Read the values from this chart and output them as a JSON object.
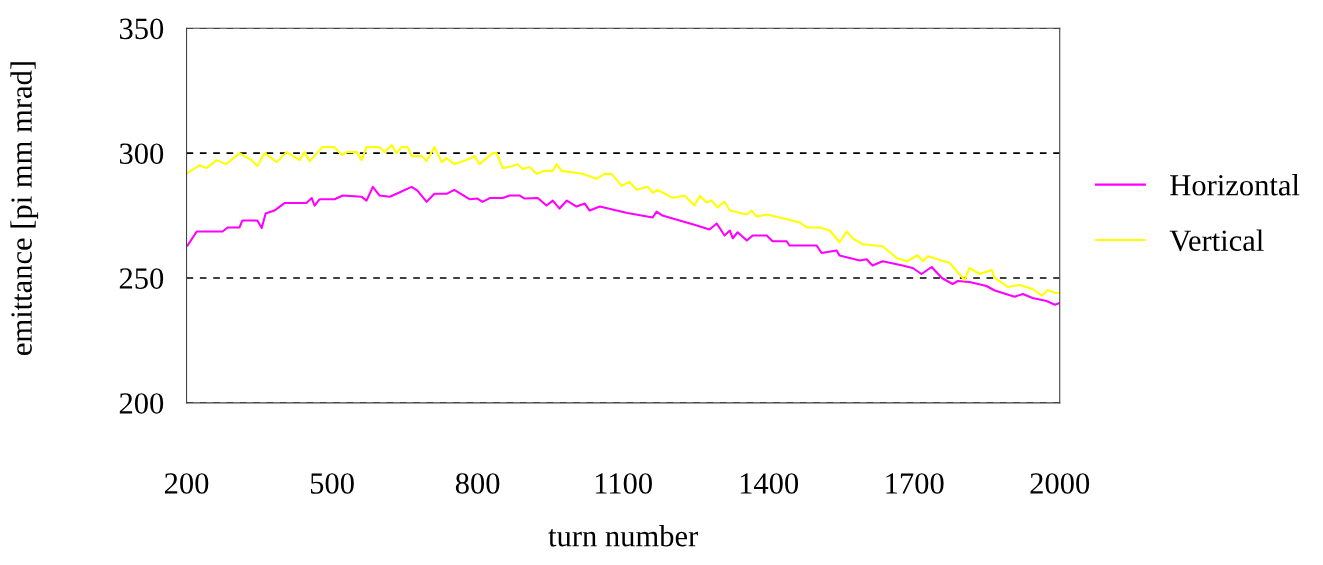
{
  "chart_data": {
    "type": "line",
    "xlabel": "turn number",
    "ylabel": "emittance [pi mm mrad]",
    "xlim": [
      200,
      2000
    ],
    "xticks": [
      200,
      500,
      800,
      1100,
      1400,
      1700,
      2000
    ],
    "ylim": [
      200,
      350
    ],
    "yticks": [
      200,
      250,
      300,
      350
    ],
    "grid": "y",
    "legend": "right",
    "marker": "none",
    "line_style": "solid",
    "series": [
      {
        "name": "Horizontal",
        "color": "#ff00ff",
        "x": [
          202,
          221,
          274,
          285,
          309,
          315,
          346,
          355,
          363,
          381,
          402,
          447,
          458,
          464,
          474,
          505,
          522,
          561,
          571,
          584,
          598,
          619,
          633,
          664,
          676,
          695,
          711,
          736,
          752,
          784,
          800,
          810,
          825,
          852,
          866,
          887,
          897,
          924,
          942,
          955,
          969,
          984,
          1004,
          1021,
          1031,
          1052,
          1078,
          1109,
          1161,
          1169,
          1181,
          1252,
          1278,
          1293,
          1309,
          1320,
          1326,
          1336,
          1355,
          1367,
          1396,
          1408,
          1437,
          1443,
          1499,
          1509,
          1540,
          1546,
          1588,
          1602,
          1614,
          1635,
          1676,
          1697,
          1715,
          1736,
          1757,
          1779,
          1790,
          1814,
          1849,
          1866,
          1907,
          1924,
          1944,
          1973,
          1990,
          2000
        ],
        "values": [
          263,
          268.6,
          268.6,
          270.2,
          270.2,
          273,
          273,
          270,
          275.8,
          277,
          280,
          280,
          282,
          279,
          281.5,
          281.5,
          283,
          282.5,
          281,
          286.5,
          283,
          282.5,
          283.7,
          286.5,
          285,
          280.5,
          283.7,
          283.7,
          285.3,
          281.5,
          281.8,
          280.5,
          282,
          282,
          283,
          283,
          281.8,
          282,
          279,
          281,
          277.8,
          281,
          278.6,
          279.8,
          277,
          278.6,
          277.4,
          276,
          274.2,
          276.6,
          275,
          271,
          269.4,
          271.8,
          267,
          269,
          265.9,
          268.3,
          265,
          267,
          267,
          264.7,
          264.7,
          263,
          263,
          260,
          261,
          259,
          257,
          257.5,
          255,
          256.7,
          255,
          254,
          251.6,
          254.4,
          250,
          247.6,
          248.8,
          248.4,
          246.8,
          245,
          242.5,
          243.6,
          242,
          240.8,
          239.3,
          240
        ]
      },
      {
        "name": "Vertical",
        "color": "#ffff00",
        "x": [
          202,
          227,
          241,
          262,
          282,
          309,
          334,
          346,
          361,
          386,
          406,
          433,
          443,
          454,
          480,
          505,
          520,
          530,
          551,
          561,
          571,
          598,
          608,
          623,
          633,
          643,
          656,
          664,
          685,
          695,
          711,
          726,
          736,
          752,
          777,
          794,
          804,
          831,
          839,
          852,
          872,
          882,
          893,
          907,
          922,
          938,
          955,
          963,
          973,
          1016,
          1045,
          1062,
          1076,
          1097,
          1113,
          1128,
          1151,
          1161,
          1171,
          1202,
          1227,
          1247,
          1258,
          1272,
          1282,
          1295,
          1309,
          1320,
          1355,
          1365,
          1375,
          1396,
          1423,
          1464,
          1480,
          1505,
          1526,
          1546,
          1561,
          1573,
          1594,
          1635,
          1664,
          1685,
          1707,
          1718,
          1728,
          1773,
          1804,
          1814,
          1835,
          1860,
          1866,
          1893,
          1918,
          1944,
          1963,
          1975,
          1992,
          2000
        ],
        "values": [
          292,
          295.2,
          294,
          297.2,
          295.6,
          300,
          297.2,
          294.8,
          300,
          296.4,
          300.4,
          297.2,
          300.4,
          296.8,
          302.4,
          302.4,
          299.2,
          300.4,
          300.4,
          297.2,
          302.4,
          302.4,
          300.4,
          303.2,
          300,
          302.4,
          302.4,
          298.8,
          298.8,
          296.8,
          302.4,
          296.4,
          298,
          295.6,
          297.2,
          298.8,
          295.6,
          300,
          300,
          294,
          294.8,
          295.6,
          293.6,
          294.4,
          291.7,
          292.9,
          292.9,
          295.6,
          292.9,
          291.7,
          289.7,
          291.7,
          291.7,
          286.9,
          288.5,
          285.3,
          286.5,
          284.1,
          285.3,
          282.1,
          282.9,
          279,
          282.9,
          280.2,
          281,
          278.2,
          280.6,
          277,
          275.4,
          277,
          274.6,
          275.4,
          274.2,
          272.2,
          270.2,
          270.2,
          269,
          264.3,
          268.6,
          265.9,
          263.5,
          262.7,
          258,
          256.7,
          259.1,
          256.7,
          258.7,
          256,
          249.2,
          254,
          251.6,
          253.2,
          250,
          246.4,
          247.2,
          245.6,
          242.9,
          245.2,
          244,
          244
        ]
      }
    ]
  }
}
